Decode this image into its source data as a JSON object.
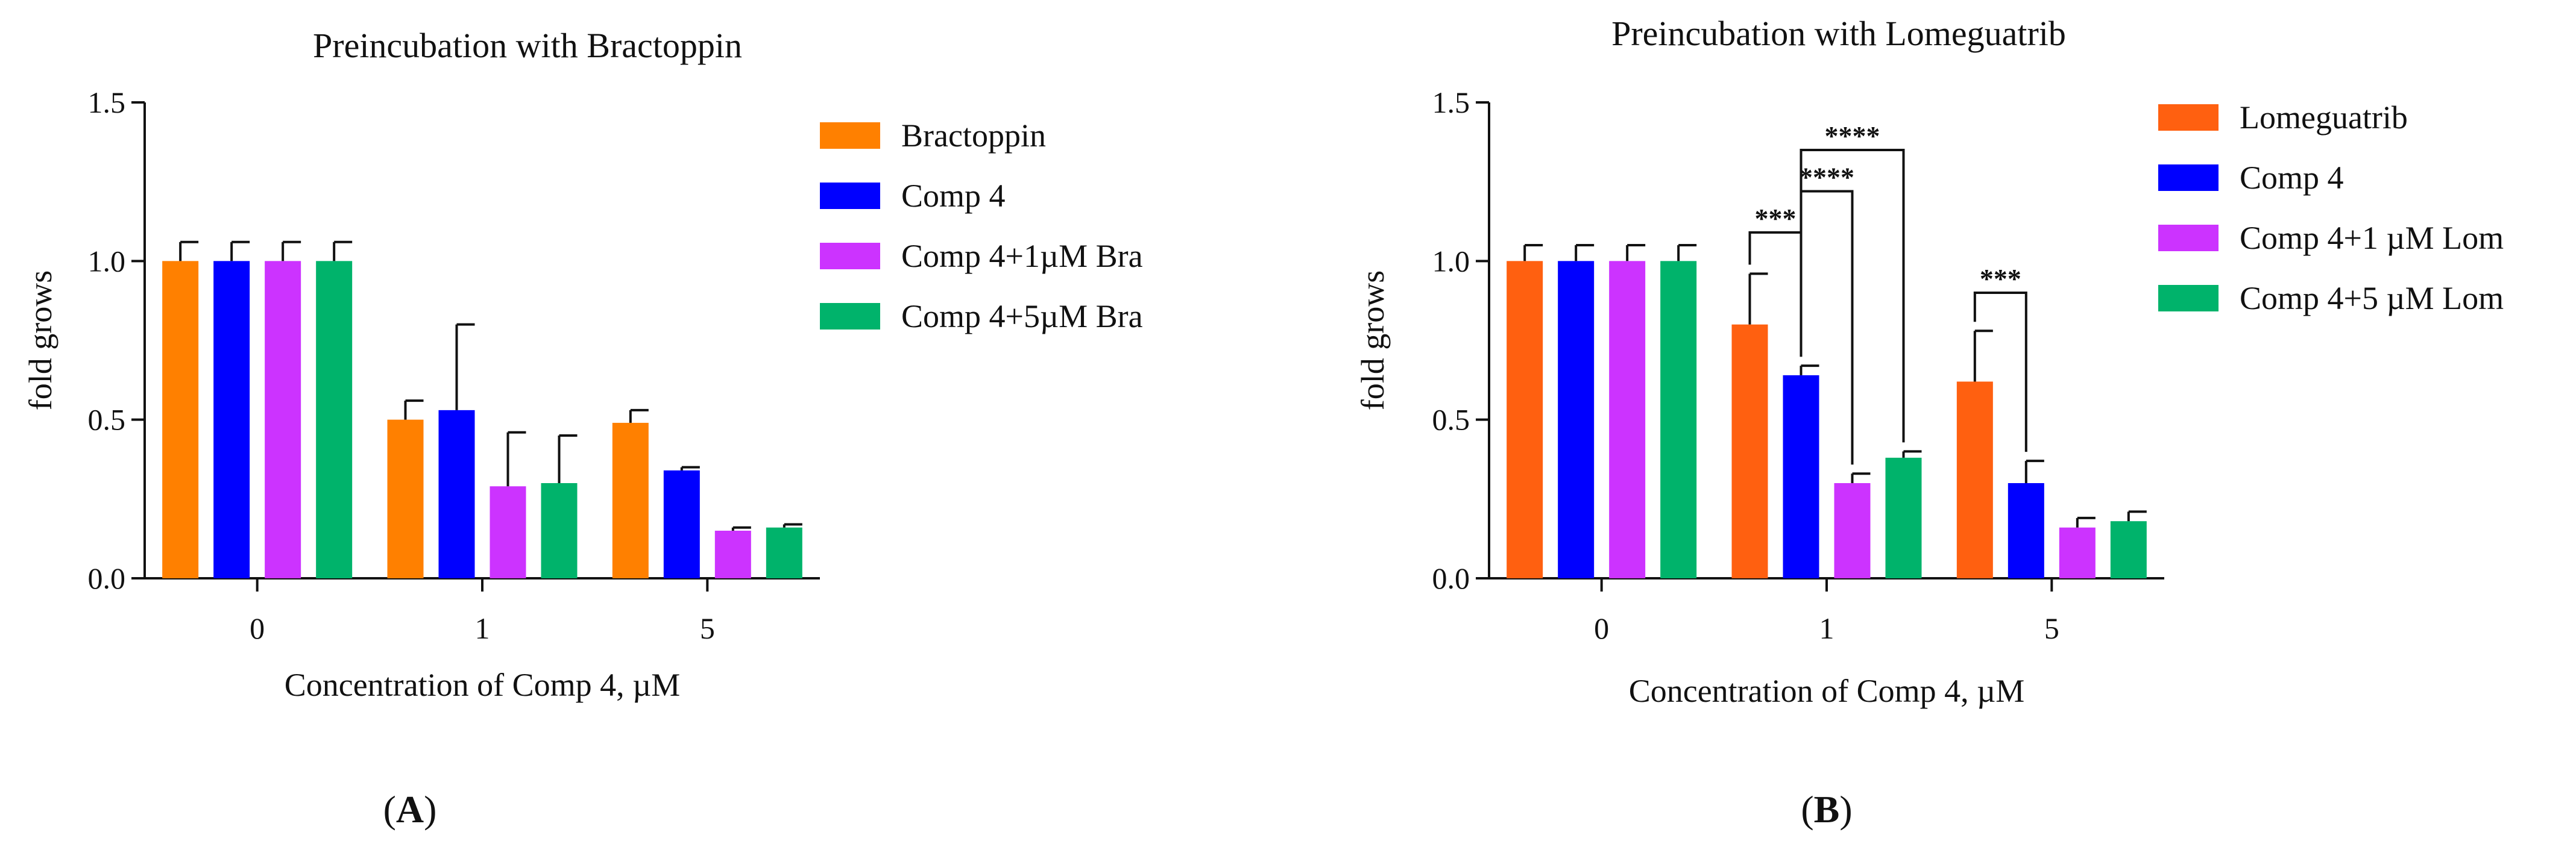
{
  "chart_data": [
    {
      "type": "bar",
      "panel_label": "(A)",
      "panel_letter": "A",
      "title": "Preincubation with Bractoppin",
      "xlabel": "Concentration of Comp 4, µM",
      "ylabel": "fold grows",
      "ylim": [
        0,
        1.5
      ],
      "yticks": [
        "0.0",
        "0.5",
        "1.0",
        "1.5"
      ],
      "categories": [
        "0",
        "1",
        "5"
      ],
      "legend_position": "right",
      "series": [
        {
          "name": "Bractoppin",
          "color": "#ff8000",
          "values": [
            1.0,
            0.5,
            0.49
          ],
          "errors": [
            0.06,
            0.06,
            0.04
          ]
        },
        {
          "name": "Comp 4",
          "color": "#0000ff",
          "values": [
            1.0,
            0.53,
            0.34
          ],
          "errors": [
            0.06,
            0.27,
            0.01
          ]
        },
        {
          "name": "Comp 4+1µM Bra",
          "color": "#cc33ff",
          "values": [
            1.0,
            0.29,
            0.15
          ],
          "errors": [
            0.06,
            0.17,
            0.01
          ]
        },
        {
          "name": "Comp 4+5µM Bra",
          "color": "#00b36b",
          "values": [
            1.0,
            0.3,
            0.16
          ],
          "errors": [
            0.06,
            0.15,
            0.01
          ]
        }
      ],
      "significance": []
    },
    {
      "type": "bar",
      "panel_label": "(B)",
      "panel_letter": "B",
      "title": "Preincubation with Lomeguatrib",
      "xlabel": "Concentration of  Comp 4, µM",
      "ylabel": "fold grows",
      "ylim": [
        0,
        1.5
      ],
      "yticks": [
        "0.0",
        "0.5",
        "1.0",
        "1.5"
      ],
      "categories": [
        "0",
        "1",
        "5"
      ],
      "legend_position": "right",
      "series": [
        {
          "name": "Lomeguatrib",
          "color": "#ff6010",
          "values": [
            1.0,
            0.8,
            0.62
          ],
          "errors": [
            0.05,
            0.16,
            0.16
          ]
        },
        {
          "name": "Comp 4",
          "color": "#0000ff",
          "values": [
            1.0,
            0.64,
            0.3
          ],
          "errors": [
            0.05,
            0.03,
            0.07
          ]
        },
        {
          "name": "Comp 4+1 µM Lom",
          "color": "#cc33ff",
          "values": [
            1.0,
            0.3,
            0.16
          ],
          "errors": [
            0.05,
            0.03,
            0.03
          ]
        },
        {
          "name": "Comp 4+5 µM Lom",
          "color": "#00b36b",
          "values": [
            1.0,
            0.38,
            0.18
          ],
          "errors": [
            0.05,
            0.02,
            0.03
          ]
        }
      ],
      "significance": [
        {
          "label": "***",
          "category": 1,
          "from": 0,
          "to": 1,
          "level": 1.09
        },
        {
          "label": "****",
          "category": 1,
          "from": 1,
          "to": 2,
          "level": 1.22
        },
        {
          "label": "****",
          "category": 1,
          "from": 1,
          "to": 3,
          "level": 1.35
        },
        {
          "label": "***",
          "category": 2,
          "from": 0,
          "to": 1,
          "level": 0.9
        }
      ]
    }
  ]
}
